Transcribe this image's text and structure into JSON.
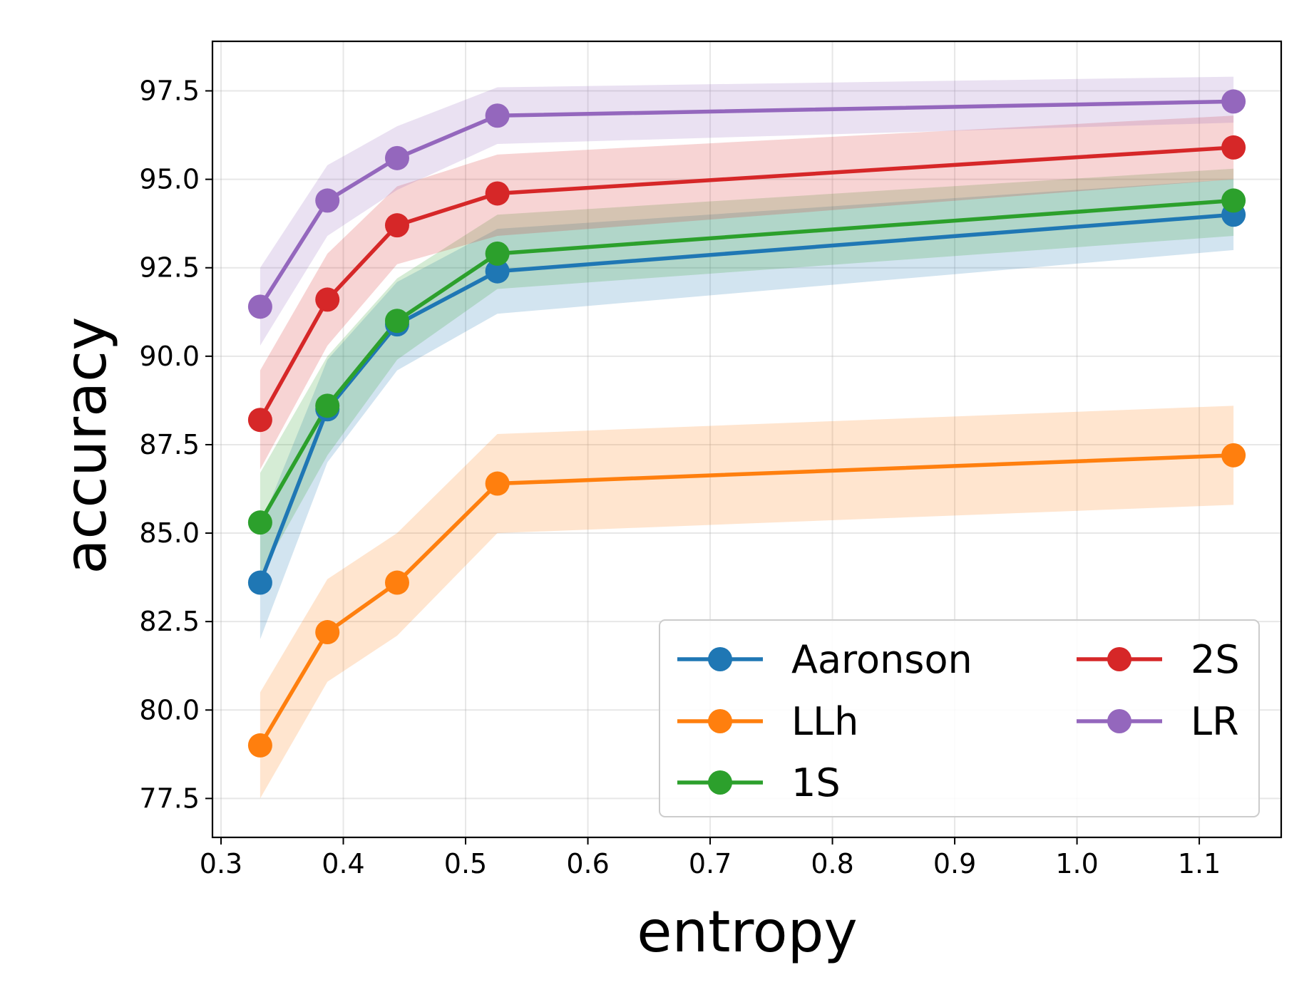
{
  "chart_data": {
    "type": "line",
    "title": "",
    "xlabel": "entropy",
    "ylabel": "accuracy",
    "xlim": [
      0.293,
      1.167
    ],
    "ylim": [
      76.4,
      98.9
    ],
    "grid": true,
    "x_ticks": [
      0.3,
      0.4,
      0.5,
      0.6,
      0.7,
      0.8,
      0.9,
      1.0,
      1.1
    ],
    "x_tick_labels": [
      "0.3",
      "0.4",
      "0.5",
      "0.6",
      "0.7",
      "0.8",
      "0.9",
      "1.0",
      "1.1"
    ],
    "y_ticks": [
      77.5,
      80.0,
      82.5,
      85.0,
      87.5,
      90.0,
      92.5,
      95.0,
      97.5
    ],
    "y_tick_labels": [
      "77.5",
      "80.0",
      "82.5",
      "85.0",
      "87.5",
      "90.0",
      "92.5",
      "95.0",
      "97.5"
    ],
    "x": [
      0.332,
      0.387,
      0.444,
      0.526,
      1.128
    ],
    "legend": {
      "position": "lower right",
      "columns": 2
    },
    "series": [
      {
        "name": "Aaronson",
        "color": "#1f77b4",
        "values": [
          83.6,
          88.5,
          90.9,
          92.4,
          94.0
        ],
        "lower": [
          82.0,
          87.0,
          89.6,
          91.2,
          93.0
        ],
        "upper": [
          85.2,
          89.9,
          92.1,
          93.6,
          95.0
        ]
      },
      {
        "name": "LLh",
        "color": "#ff7f0e",
        "values": [
          79.0,
          82.2,
          83.6,
          86.4,
          87.2
        ],
        "lower": [
          77.5,
          80.8,
          82.1,
          85.0,
          85.8
        ],
        "upper": [
          80.5,
          83.7,
          85.0,
          87.8,
          88.6
        ]
      },
      {
        "name": "1S",
        "color": "#2ca02c",
        "values": [
          85.3,
          88.6,
          91.0,
          92.9,
          94.4
        ],
        "lower": [
          83.8,
          87.2,
          89.9,
          91.9,
          93.4
        ],
        "upper": [
          86.7,
          90.0,
          92.2,
          94.0,
          95.3
        ]
      },
      {
        "name": "2S",
        "color": "#d62728",
        "values": [
          88.2,
          91.6,
          93.7,
          94.6,
          95.9
        ],
        "lower": [
          86.8,
          90.3,
          92.6,
          93.4,
          95.0
        ],
        "upper": [
          89.6,
          92.9,
          94.8,
          95.7,
          96.8
        ]
      },
      {
        "name": "LR",
        "color": "#9467bd",
        "values": [
          91.4,
          94.4,
          95.6,
          96.8,
          97.2
        ],
        "lower": [
          90.3,
          93.4,
          94.7,
          96.0,
          96.6
        ],
        "upper": [
          92.5,
          95.4,
          96.5,
          97.6,
          97.9
        ]
      }
    ]
  }
}
